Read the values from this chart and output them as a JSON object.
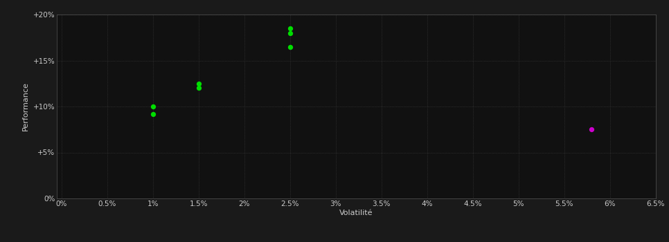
{
  "background_color": "#1a1a1a",
  "plot_bg_color": "#111111",
  "grid_color": "#404040",
  "text_color": "#cccccc",
  "green_points": [
    [
      1.0,
      10.0
    ],
    [
      1.0,
      9.2
    ],
    [
      1.5,
      12.5
    ],
    [
      1.5,
      12.0
    ],
    [
      2.5,
      18.5
    ],
    [
      2.5,
      18.0
    ],
    [
      2.5,
      16.5
    ]
  ],
  "magenta_points": [
    [
      5.8,
      7.5
    ]
  ],
  "green_color": "#00dd00",
  "magenta_color": "#cc00cc",
  "xlabel": "Volatilité",
  "ylabel": "Performance",
  "xlim": [
    -0.05,
    6.5
  ],
  "ylim": [
    0.0,
    20.0
  ],
  "xtick_values": [
    0.0,
    0.5,
    1.0,
    1.5,
    2.0,
    2.5,
    3.0,
    3.5,
    4.0,
    4.5,
    5.0,
    5.5,
    6.0,
    6.5
  ],
  "ytick_values": [
    0.0,
    5.0,
    10.0,
    15.0,
    20.0
  ],
  "ytick_labels": [
    "0%",
    "+5%",
    "+10%",
    "+15%",
    "+20%"
  ],
  "xtick_labels": [
    "0%",
    "0.5%",
    "1%",
    "1.5%",
    "2%",
    "2.5%",
    "3%",
    "3.5%",
    "4%",
    "4.5%",
    "5%",
    "5.5%",
    "6%",
    "6.5%"
  ],
  "marker_size": 7,
  "xlabel_fontsize": 8,
  "ylabel_fontsize": 8,
  "tick_fontsize": 7.5
}
